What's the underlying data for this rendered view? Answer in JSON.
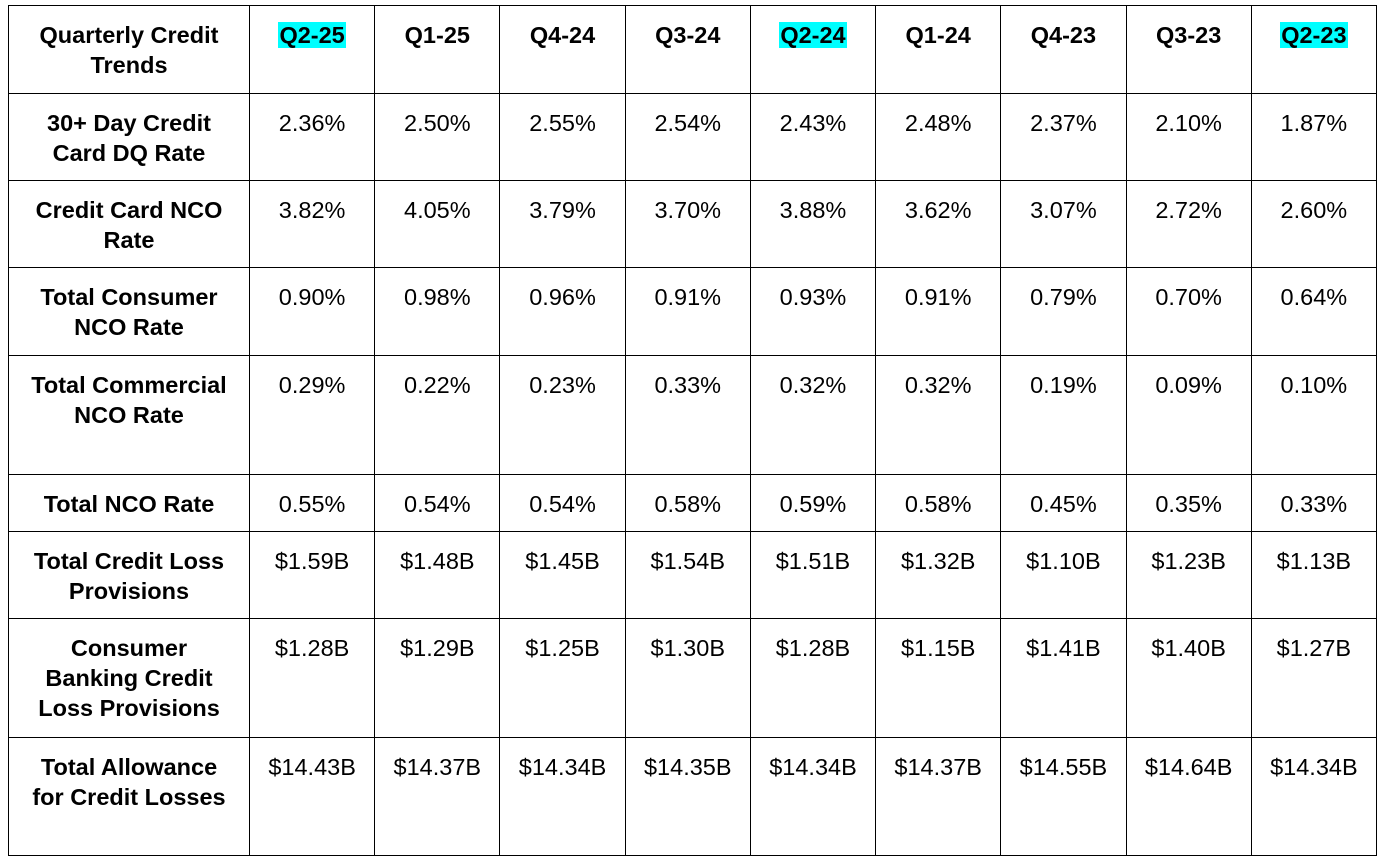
{
  "table": {
    "corner": "Quarterly Credit Trends",
    "columns": [
      {
        "label": "Q2-25",
        "highlight": "#00ffff"
      },
      {
        "label": "Q1-25"
      },
      {
        "label": "Q4-24"
      },
      {
        "label": "Q3-24"
      },
      {
        "label": "Q2-24",
        "highlight": "#00ffff"
      },
      {
        "label": "Q1-24"
      },
      {
        "label": "Q4-23"
      },
      {
        "label": "Q3-23"
      },
      {
        "label": "Q2-23",
        "highlight": "#00ffff"
      }
    ],
    "rows": [
      {
        "label": "30+ Day Credit Card DQ Rate",
        "values": [
          "2.36%",
          "2.50%",
          "2.55%",
          "2.54%",
          "2.43%",
          "2.48%",
          "2.37%",
          "2.10%",
          "1.87%"
        ]
      },
      {
        "label": "Credit Card NCO Rate",
        "values": [
          "3.82%",
          "4.05%",
          "3.79%",
          "3.70%",
          "3.88%",
          "3.62%",
          "3.07%",
          "2.72%",
          "2.60%"
        ]
      },
      {
        "label": "Total Consumer NCO Rate",
        "values": [
          "0.90%",
          "0.98%",
          "0.96%",
          "0.91%",
          "0.93%",
          "0.91%",
          "0.79%",
          "0.70%",
          "0.64%"
        ]
      },
      {
        "label": "Total Commercial NCO Rate",
        "values": [
          "0.29%",
          "0.22%",
          "0.23%",
          "0.33%",
          "0.32%",
          "0.32%",
          "0.19%",
          "0.09%",
          "0.10%"
        ]
      },
      {
        "label": "Total NCO Rate",
        "values": [
          "0.55%",
          "0.54%",
          "0.54%",
          "0.58%",
          "0.59%",
          "0.58%",
          "0.45%",
          "0.35%",
          "0.33%"
        ]
      },
      {
        "label": "Total Credit Loss Provisions",
        "values": [
          "$1.59B",
          "$1.48B",
          "$1.45B",
          "$1.54B",
          "$1.51B",
          "$1.32B",
          "$1.10B",
          "$1.23B",
          "$1.13B"
        ]
      },
      {
        "label": "Consumer Banking Credit Loss Provisions",
        "values": [
          "$1.28B",
          "$1.29B",
          "$1.25B",
          "$1.30B",
          "$1.28B",
          "$1.15B",
          "$1.41B",
          "$1.40B",
          "$1.27B"
        ]
      },
      {
        "label": "Total Allowance for Credit Losses",
        "values": [
          "$14.43B",
          "$14.37B",
          "$14.34B",
          "$14.35B",
          "$14.34B",
          "$14.37B",
          "$14.55B",
          "$14.64B",
          "$14.34B"
        ]
      }
    ]
  }
}
